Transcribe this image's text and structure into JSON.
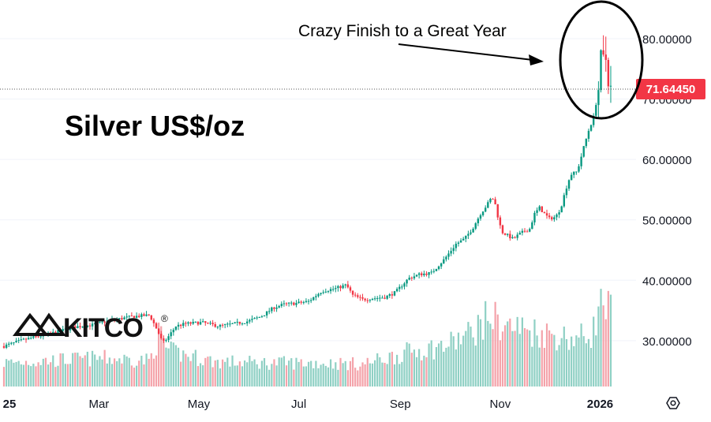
{
  "chart_data": {
    "type": "candlestick",
    "title": "Silver US$/oz",
    "annotation": "Crazy Finish to a Great Year",
    "logo": "KITCO",
    "logo_mark": "®",
    "current_price": 71.6445,
    "current_price_label": "71.64450",
    "y_ticks": [
      {
        "value": 30,
        "label": "30.00000"
      },
      {
        "value": 40,
        "label": "40.00000"
      },
      {
        "value": 50,
        "label": "50.00000"
      },
      {
        "value": 60,
        "label": "60.00000"
      },
      {
        "value": 70,
        "label": "70.00000"
      },
      {
        "value": 80,
        "label": "80.00000"
      }
    ],
    "ylim": [
      22.4,
      86.4
    ],
    "x_ticks": [
      {
        "label": "25",
        "bold": true,
        "day": -1
      },
      {
        "label": "Mar",
        "day": 59
      },
      {
        "label": "May",
        "day": 120
      },
      {
        "label": "Jul",
        "day": 181
      },
      {
        "label": "Sep",
        "day": 243
      },
      {
        "label": "Nov",
        "day": 304
      },
      {
        "label": "2026",
        "bold": true,
        "day": 365
      }
    ],
    "price_path": [
      [
        0,
        29.0
      ],
      [
        14,
        30.2
      ],
      [
        30,
        31.2
      ],
      [
        45,
        32.3
      ],
      [
        55,
        32.6
      ],
      [
        65,
        33.3
      ],
      [
        80,
        34.0
      ],
      [
        90,
        34.2
      ],
      [
        95,
        31.5
      ],
      [
        98,
        29.6
      ],
      [
        101,
        30.5
      ],
      [
        106,
        32.4
      ],
      [
        112,
        32.8
      ],
      [
        122,
        33.0
      ],
      [
        132,
        32.4
      ],
      [
        142,
        32.8
      ],
      [
        150,
        33.2
      ],
      [
        158,
        34.0
      ],
      [
        166,
        35.5
      ],
      [
        172,
        36.0
      ],
      [
        180,
        36.2
      ],
      [
        187,
        36.5
      ],
      [
        195,
        38.2
      ],
      [
        203,
        38.6
      ],
      [
        210,
        39.2
      ],
      [
        214,
        37.5
      ],
      [
        220,
        36.8
      ],
      [
        226,
        37.0
      ],
      [
        234,
        37.2
      ],
      [
        240,
        38.0
      ],
      [
        248,
        40.3
      ],
      [
        255,
        41.0
      ],
      [
        262,
        41.2
      ],
      [
        270,
        43.5
      ],
      [
        277,
        46.0
      ],
      [
        282,
        46.8
      ],
      [
        287,
        48.5
      ],
      [
        292,
        51.0
      ],
      [
        296,
        52.5
      ],
      [
        299,
        53.8
      ],
      [
        301,
        52.5
      ],
      [
        303,
        50.0
      ],
      [
        305,
        48.0
      ],
      [
        308,
        47.5
      ],
      [
        312,
        46.8
      ],
      [
        315,
        47.5
      ],
      [
        318,
        48.0
      ],
      [
        322,
        48.5
      ],
      [
        325,
        51.0
      ],
      [
        328,
        52.0
      ],
      [
        331,
        51.0
      ],
      [
        334,
        50.2
      ],
      [
        338,
        50.5
      ],
      [
        341,
        52.0
      ],
      [
        344,
        55.0
      ],
      [
        347,
        57.5
      ],
      [
        351,
        58.0
      ],
      [
        353,
        60.0
      ],
      [
        355,
        62.0
      ],
      [
        358,
        64.8
      ],
      [
        361,
        67.0
      ],
      [
        363,
        70.0
      ],
      [
        364.5,
        72.5
      ],
      [
        366,
        78.5
      ],
      [
        367.5,
        75.0
      ],
      [
        369,
        77.5
      ],
      [
        370.5,
        71.6
      ],
      [
        372,
        71.6445
      ]
    ],
    "volume_range": [
      0,
      100
    ],
    "volume_path": [
      [
        0,
        20
      ],
      [
        30,
        22
      ],
      [
        60,
        24
      ],
      [
        90,
        22
      ],
      [
        96,
        45
      ],
      [
        101,
        30
      ],
      [
        130,
        21
      ],
      [
        160,
        20
      ],
      [
        190,
        20
      ],
      [
        220,
        19
      ],
      [
        240,
        26
      ],
      [
        250,
        30
      ],
      [
        270,
        34
      ],
      [
        285,
        44
      ],
      [
        298,
        60
      ],
      [
        305,
        52
      ],
      [
        320,
        48
      ],
      [
        335,
        44
      ],
      [
        350,
        40
      ],
      [
        360,
        45
      ],
      [
        366,
        70
      ],
      [
        370,
        64
      ]
    ]
  }
}
